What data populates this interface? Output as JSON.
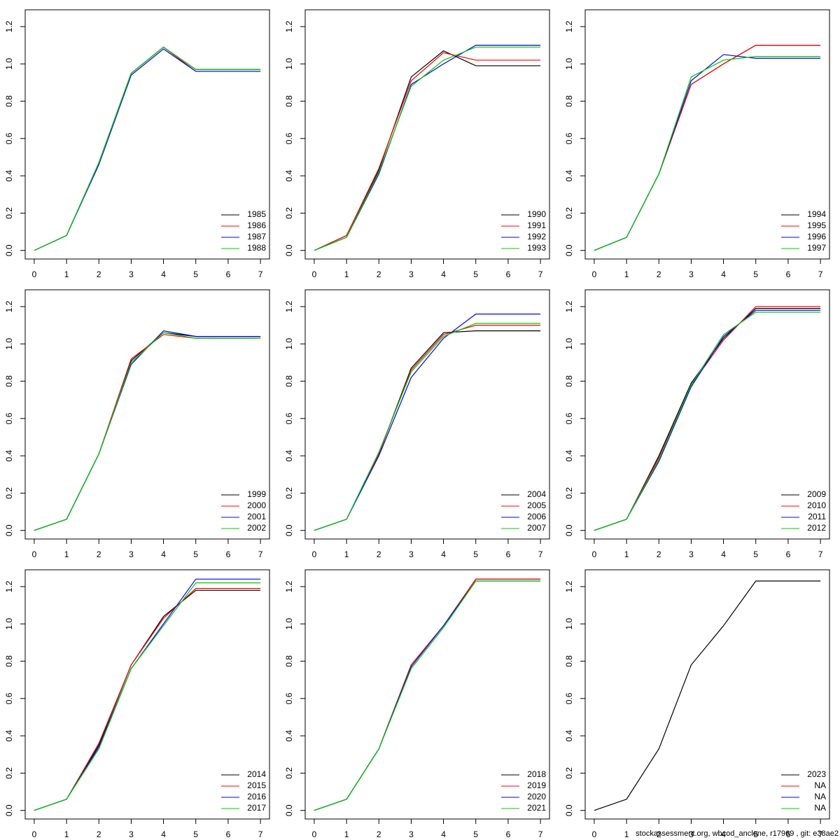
{
  "chart_data": [
    {
      "type": "line",
      "x": [
        0,
        1,
        2,
        3,
        4,
        5,
        6,
        7
      ],
      "xlim": [
        -0.28,
        7.28
      ],
      "xticks": [
        0,
        1,
        2,
        3,
        4,
        5,
        6,
        7
      ],
      "ylim": [
        -0.046,
        1.29
      ],
      "yticks": [
        {
          "value": 0,
          "label": "0.0"
        },
        0.2,
        0.4,
        0.6,
        0.8,
        {
          "value": 1,
          "label": "1.0"
        },
        1.2
      ],
      "legend": "bottomright",
      "series": [
        {
          "name": "1985",
          "color": "#000000",
          "values": [
            0,
            0.08,
            0.47,
            0.95,
            1.09,
            0.97,
            0.97,
            0.97
          ]
        },
        {
          "name": "1986",
          "color": "#ff0000",
          "values": [
            0,
            0.08,
            0.47,
            0.95,
            1.09,
            0.96,
            0.96,
            0.96
          ]
        },
        {
          "name": "1987",
          "color": "#0000ff",
          "values": [
            0,
            0.08,
            0.46,
            0.94,
            1.08,
            0.96,
            0.96,
            0.96
          ]
        },
        {
          "name": "1988",
          "color": "#00cc00",
          "values": [
            0,
            0.08,
            0.47,
            0.95,
            1.09,
            0.97,
            0.97,
            0.97
          ]
        }
      ]
    },
    {
      "type": "line",
      "x": [
        0,
        1,
        2,
        3,
        4,
        5,
        6,
        7
      ],
      "xlim": [
        -0.28,
        7.28
      ],
      "xticks": [
        0,
        1,
        2,
        3,
        4,
        5,
        6,
        7
      ],
      "ylim": [
        -0.046,
        1.29
      ],
      "yticks": [
        {
          "value": 0,
          "label": "0.0"
        },
        0.2,
        0.4,
        0.6,
        0.8,
        {
          "value": 1,
          "label": "1.0"
        },
        1.2
      ],
      "legend": "bottomright",
      "series": [
        {
          "name": "1990",
          "color": "#000000",
          "values": [
            0,
            0.08,
            0.43,
            0.93,
            1.07,
            0.99,
            0.99,
            0.99
          ]
        },
        {
          "name": "1991",
          "color": "#ff0000",
          "values": [
            0,
            0.08,
            0.44,
            0.91,
            1.06,
            1.02,
            1.02,
            1.02
          ]
        },
        {
          "name": "1992",
          "color": "#0000ff",
          "values": [
            0,
            0.07,
            0.41,
            0.89,
            1.0,
            1.1,
            1.1,
            1.1
          ]
        },
        {
          "name": "1993",
          "color": "#00cc00",
          "values": [
            0,
            0.07,
            0.42,
            0.88,
            1.02,
            1.09,
            1.09,
            1.09
          ]
        }
      ]
    },
    {
      "type": "line",
      "x": [
        0,
        1,
        2,
        3,
        4,
        5,
        6,
        7
      ],
      "xlim": [
        -0.28,
        7.28
      ],
      "xticks": [
        0,
        1,
        2,
        3,
        4,
        5,
        6,
        7
      ],
      "ylim": [
        -0.046,
        1.29
      ],
      "yticks": [
        {
          "value": 0,
          "label": "0.0"
        },
        0.2,
        0.4,
        0.6,
        0.8,
        {
          "value": 1,
          "label": "1.0"
        },
        1.2
      ],
      "legend": "bottomright",
      "series": [
        {
          "name": "1994",
          "color": "#000000",
          "values": [
            0,
            0.07,
            0.41,
            0.89,
            1.0,
            1.1,
            1.1,
            1.1
          ]
        },
        {
          "name": "1995",
          "color": "#ff0000",
          "values": [
            0,
            0.07,
            0.41,
            0.89,
            1.0,
            1.1,
            1.1,
            1.1
          ]
        },
        {
          "name": "1996",
          "color": "#0000ff",
          "values": [
            0,
            0.07,
            0.41,
            0.91,
            1.05,
            1.03,
            1.03,
            1.03
          ]
        },
        {
          "name": "1997",
          "color": "#00cc00",
          "values": [
            0,
            0.07,
            0.41,
            0.93,
            1.02,
            1.04,
            1.04,
            1.04
          ]
        }
      ]
    },
    {
      "type": "line",
      "x": [
        0,
        1,
        2,
        3,
        4,
        5,
        6,
        7
      ],
      "xlim": [
        -0.28,
        7.28
      ],
      "xticks": [
        0,
        1,
        2,
        3,
        4,
        5,
        6,
        7
      ],
      "ylim": [
        -0.046,
        1.29
      ],
      "yticks": [
        {
          "value": 0,
          "label": "0.0"
        },
        0.2,
        0.4,
        0.6,
        0.8,
        {
          "value": 1,
          "label": "1.0"
        },
        1.2
      ],
      "legend": "bottomright",
      "series": [
        {
          "name": "1999",
          "color": "#000000",
          "values": [
            0,
            0.06,
            0.41,
            0.91,
            1.06,
            1.04,
            1.04,
            1.04
          ]
        },
        {
          "name": "2000",
          "color": "#ff0000",
          "values": [
            0,
            0.06,
            0.41,
            0.92,
            1.05,
            1.03,
            1.03,
            1.03
          ]
        },
        {
          "name": "2001",
          "color": "#0000ff",
          "values": [
            0,
            0.06,
            0.41,
            0.89,
            1.07,
            1.04,
            1.04,
            1.04
          ]
        },
        {
          "name": "2002",
          "color": "#00cc00",
          "values": [
            0,
            0.06,
            0.41,
            0.9,
            1.06,
            1.03,
            1.03,
            1.03
          ]
        }
      ]
    },
    {
      "type": "line",
      "x": [
        0,
        1,
        2,
        3,
        4,
        5,
        6,
        7
      ],
      "xlim": [
        -0.28,
        7.28
      ],
      "xticks": [
        0,
        1,
        2,
        3,
        4,
        5,
        6,
        7
      ],
      "ylim": [
        -0.046,
        1.29
      ],
      "yticks": [
        {
          "value": 0,
          "label": "0.0"
        },
        0.2,
        0.4,
        0.6,
        0.8,
        {
          "value": 1,
          "label": "1.0"
        },
        1.2
      ],
      "legend": "bottomright",
      "series": [
        {
          "name": "2004",
          "color": "#000000",
          "values": [
            0,
            0.06,
            0.41,
            0.87,
            1.06,
            1.07,
            1.07,
            1.07
          ]
        },
        {
          "name": "2005",
          "color": "#ff0000",
          "values": [
            0,
            0.06,
            0.41,
            0.86,
            1.05,
            1.1,
            1.1,
            1.1
          ]
        },
        {
          "name": "2006",
          "color": "#0000ff",
          "values": [
            0,
            0.06,
            0.4,
            0.82,
            1.03,
            1.16,
            1.16,
            1.16
          ]
        },
        {
          "name": "2007",
          "color": "#00cc00",
          "values": [
            0,
            0.06,
            0.42,
            0.85,
            1.04,
            1.11,
            1.11,
            1.11
          ]
        }
      ]
    },
    {
      "type": "line",
      "x": [
        0,
        1,
        2,
        3,
        4,
        5,
        6,
        7
      ],
      "xlim": [
        -0.28,
        7.28
      ],
      "xticks": [
        0,
        1,
        2,
        3,
        4,
        5,
        6,
        7
      ],
      "ylim": [
        -0.046,
        1.29
      ],
      "yticks": [
        {
          "value": 0,
          "label": "0.0"
        },
        0.2,
        0.4,
        0.6,
        0.8,
        {
          "value": 1,
          "label": "1.0"
        },
        1.2
      ],
      "legend": "bottomright",
      "series": [
        {
          "name": "2009",
          "color": "#000000",
          "values": [
            0,
            0.06,
            0.4,
            0.79,
            1.03,
            1.19,
            1.19,
            1.19
          ]
        },
        {
          "name": "2010",
          "color": "#ff0000",
          "values": [
            0,
            0.06,
            0.39,
            0.78,
            1.02,
            1.2,
            1.2,
            1.2
          ]
        },
        {
          "name": "2011",
          "color": "#0000ff",
          "values": [
            0,
            0.06,
            0.37,
            0.77,
            1.04,
            1.18,
            1.18,
            1.18
          ]
        },
        {
          "name": "2012",
          "color": "#00cc00",
          "values": [
            0,
            0.06,
            0.38,
            0.78,
            1.05,
            1.17,
            1.17,
            1.17
          ]
        }
      ]
    },
    {
      "type": "line",
      "x": [
        0,
        1,
        2,
        3,
        4,
        5,
        6,
        7
      ],
      "xlim": [
        -0.28,
        7.28
      ],
      "xticks": [
        0,
        1,
        2,
        3,
        4,
        5,
        6,
        7
      ],
      "ylim": [
        -0.046,
        1.29
      ],
      "yticks": [
        {
          "value": 0,
          "label": "0.0"
        },
        0.2,
        0.4,
        0.6,
        0.8,
        {
          "value": 1,
          "label": "1.0"
        },
        1.2
      ],
      "legend": "bottomright",
      "series": [
        {
          "name": "2014",
          "color": "#000000",
          "values": [
            0,
            0.06,
            0.35,
            0.78,
            1.04,
            1.18,
            1.18,
            1.18
          ]
        },
        {
          "name": "2015",
          "color": "#ff0000",
          "values": [
            0,
            0.06,
            0.36,
            0.78,
            1.03,
            1.19,
            1.19,
            1.19
          ]
        },
        {
          "name": "2016",
          "color": "#0000ff",
          "values": [
            0,
            0.06,
            0.34,
            0.76,
            1.0,
            1.24,
            1.24,
            1.24
          ]
        },
        {
          "name": "2017",
          "color": "#00cc00",
          "values": [
            0,
            0.06,
            0.33,
            0.76,
            0.99,
            1.22,
            1.22,
            1.22
          ]
        }
      ]
    },
    {
      "type": "line",
      "x": [
        0,
        1,
        2,
        3,
        4,
        5,
        6,
        7
      ],
      "xlim": [
        -0.28,
        7.28
      ],
      "xticks": [
        0,
        1,
        2,
        3,
        4,
        5,
        6,
        7
      ],
      "ylim": [
        -0.046,
        1.29
      ],
      "yticks": [
        {
          "value": 0,
          "label": "0.0"
        },
        0.2,
        0.4,
        0.6,
        0.8,
        {
          "value": 1,
          "label": "1.0"
        },
        1.2
      ],
      "legend": "bottomright",
      "series": [
        {
          "name": "2018",
          "color": "#000000",
          "values": [
            0,
            0.06,
            0.33,
            0.78,
            0.99,
            1.24,
            1.24,
            1.24
          ]
        },
        {
          "name": "2019",
          "color": "#ff0000",
          "values": [
            0,
            0.06,
            0.33,
            0.78,
            0.99,
            1.24,
            1.24,
            1.24
          ]
        },
        {
          "name": "2020",
          "color": "#0000ff",
          "values": [
            0,
            0.06,
            0.33,
            0.77,
            0.99,
            1.23,
            1.23,
            1.23
          ]
        },
        {
          "name": "2021",
          "color": "#00cc00",
          "values": [
            0,
            0.06,
            0.33,
            0.76,
            0.98,
            1.23,
            1.23,
            1.23
          ]
        }
      ]
    },
    {
      "type": "line",
      "x": [
        0,
        1,
        2,
        3,
        4,
        5,
        6,
        7
      ],
      "xlim": [
        -0.28,
        7.28
      ],
      "xticks": [
        0,
        1,
        2,
        3,
        4,
        5,
        6,
        7
      ],
      "ylim": [
        -0.046,
        1.29
      ],
      "yticks": [
        {
          "value": 0,
          "label": "0.0"
        },
        0.2,
        0.4,
        0.6,
        0.8,
        {
          "value": 1,
          "label": "1.0"
        },
        1.2
      ],
      "legend": "bottomright",
      "series": [
        {
          "name": "2023",
          "color": "#000000",
          "values": [
            0,
            0.06,
            0.33,
            0.78,
            0.99,
            1.23,
            1.23,
            1.23
          ]
        },
        {
          "name": "NA",
          "color": "#ff0000",
          "values": [
            null,
            null,
            null,
            null,
            null,
            null,
            null,
            null
          ]
        },
        {
          "name": "NA",
          "color": "#0000ff",
          "values": [
            null,
            null,
            null,
            null,
            null,
            null,
            null,
            null
          ]
        },
        {
          "name": "NA",
          "color": "#00cc00",
          "values": [
            null,
            null,
            null,
            null,
            null,
            null,
            null,
            null
          ]
        }
      ]
    }
  ],
  "footer": "stockassessment.org, wbcod_anclene, r17969 , git: e38ae2"
}
